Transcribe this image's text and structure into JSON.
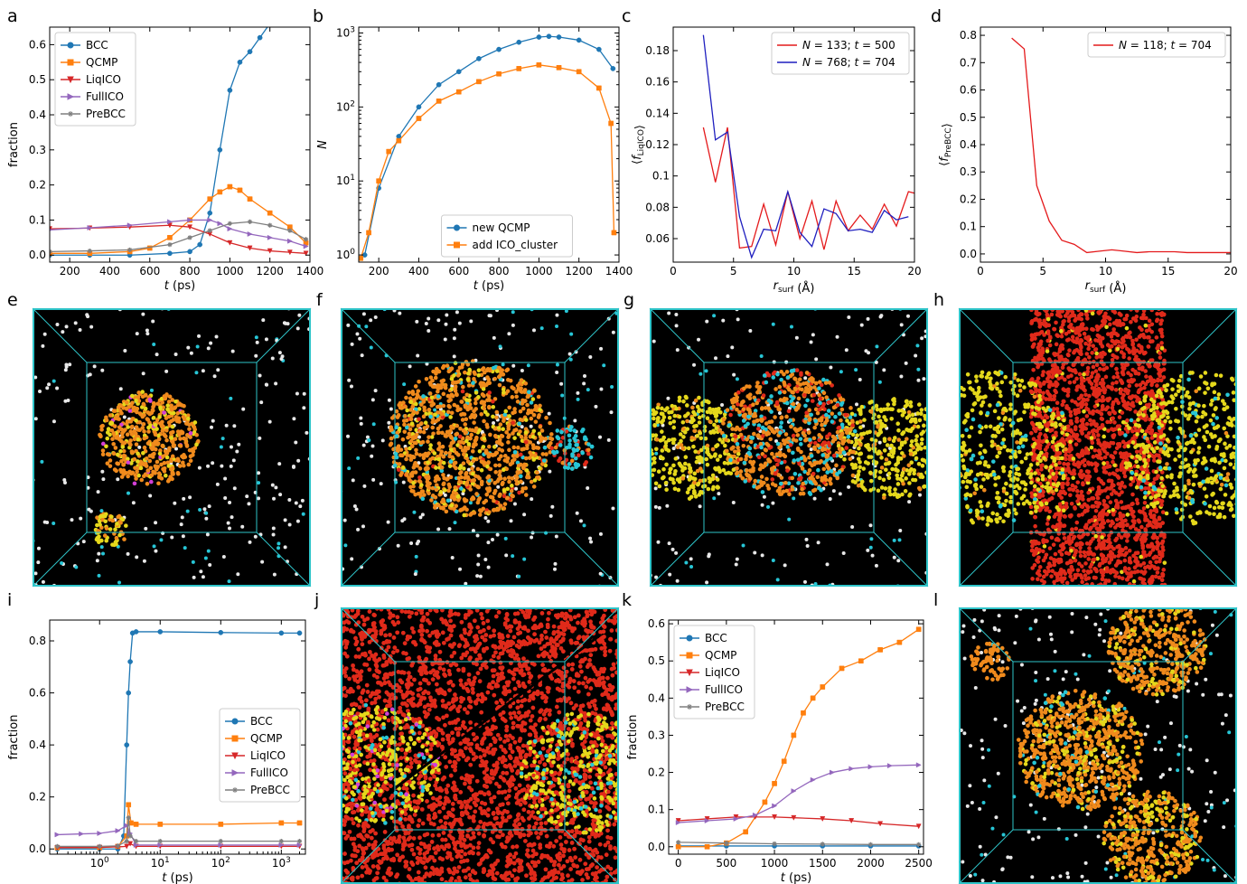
{
  "panel_letters": [
    "a",
    "b",
    "c",
    "d",
    "e",
    "f",
    "g",
    "h",
    "i",
    "j",
    "k",
    "l"
  ],
  "colors": {
    "BCC": "#1f77b4",
    "QCMP": "#ff7f0e",
    "LiqICO": "#d62728",
    "FullICO": "#9467bd",
    "PreBCC": "#7f7f7f",
    "red_line": "#e41a1c",
    "blue_line": "#1f1fbf",
    "box_edge": "#2ec4c9"
  },
  "chart_data": [
    {
      "id": "a",
      "type": "line",
      "xlabel": "t (ps)",
      "ylabel": "fraction",
      "xlim": [
        100,
        1400
      ],
      "ylim": [
        -0.02,
        0.65
      ],
      "xticks": [
        200,
        400,
        600,
        800,
        1000,
        1200,
        1400
      ],
      "yticks": [
        0.0,
        0.1,
        0.2,
        0.3,
        0.4,
        0.5,
        0.6
      ],
      "legend_position": "top-left",
      "series": [
        {
          "name": "BCC",
          "marker": "circle",
          "x": [
            100,
            300,
            500,
            700,
            800,
            850,
            900,
            950,
            1000,
            1050,
            1100,
            1150,
            1200
          ],
          "y": [
            0.0,
            0.0,
            0.0,
            0.005,
            0.01,
            0.03,
            0.12,
            0.3,
            0.47,
            0.55,
            0.58,
            0.62,
            0.66
          ]
        },
        {
          "name": "QCMP",
          "marker": "square",
          "x": [
            100,
            300,
            500,
            600,
            700,
            800,
            900,
            950,
            1000,
            1050,
            1100,
            1200,
            1300,
            1380
          ],
          "y": [
            0.005,
            0.005,
            0.01,
            0.02,
            0.05,
            0.1,
            0.16,
            0.18,
            0.195,
            0.185,
            0.16,
            0.12,
            0.08,
            0.035
          ]
        },
        {
          "name": "LiqICO",
          "marker": "triangle-down",
          "x": [
            100,
            300,
            500,
            700,
            800,
            900,
            1000,
            1100,
            1200,
            1300,
            1380
          ],
          "y": [
            0.075,
            0.077,
            0.08,
            0.085,
            0.08,
            0.06,
            0.035,
            0.02,
            0.012,
            0.008,
            0.005
          ]
        },
        {
          "name": "FullICO",
          "marker": "triangle-right",
          "x": [
            100,
            300,
            500,
            700,
            800,
            900,
            950,
            1000,
            1100,
            1200,
            1300,
            1380
          ],
          "y": [
            0.072,
            0.078,
            0.085,
            0.095,
            0.1,
            0.1,
            0.09,
            0.075,
            0.06,
            0.05,
            0.04,
            0.025
          ]
        },
        {
          "name": "PreBCC",
          "marker": "star",
          "x": [
            100,
            300,
            500,
            700,
            800,
            900,
            1000,
            1100,
            1200,
            1300,
            1380
          ],
          "y": [
            0.01,
            0.012,
            0.015,
            0.03,
            0.05,
            0.07,
            0.09,
            0.095,
            0.085,
            0.07,
            0.045
          ]
        }
      ]
    },
    {
      "id": "b",
      "type": "line",
      "xlabel": "t (ps)",
      "ylabel": "N",
      "yscale": "log",
      "xlim": [
        100,
        1400
      ],
      "ylim": [
        0.8,
        1200
      ],
      "xticks": [
        200,
        400,
        600,
        800,
        1000,
        1200,
        1400
      ],
      "yticks": [
        1,
        10,
        100,
        1000
      ],
      "ytick_labels": [
        "10^0",
        "10^1",
        "10^2",
        "10^3"
      ],
      "legend_position": "bottom-center",
      "series": [
        {
          "name": "new QCMP",
          "marker": "circle",
          "x": [
            130,
            200,
            300,
            400,
            500,
            600,
            700,
            800,
            900,
            1000,
            1050,
            1100,
            1200,
            1300,
            1370
          ],
          "y": [
            1,
            8,
            40,
            100,
            200,
            300,
            450,
            600,
            750,
            880,
            900,
            880,
            800,
            600,
            330
          ]
        },
        {
          "name": "add ICO_cluster",
          "marker": "square",
          "x": [
            110,
            150,
            200,
            250,
            300,
            400,
            500,
            600,
            700,
            800,
            900,
            1000,
            1100,
            1200,
            1300,
            1360,
            1375
          ],
          "y": [
            0.9,
            2,
            10,
            25,
            35,
            70,
            120,
            160,
            220,
            280,
            330,
            370,
            340,
            300,
            180,
            60,
            2
          ]
        }
      ]
    },
    {
      "id": "c",
      "type": "line",
      "xlabel": "r_surf (Å)",
      "ylabel": "⟨f_LiqICO⟩",
      "xlim": [
        0,
        20
      ],
      "ylim": [
        0.045,
        0.195
      ],
      "xticks": [
        0,
        5,
        10,
        15,
        20
      ],
      "yticks": [
        0.06,
        0.08,
        0.1,
        0.12,
        0.14,
        0.16,
        0.18
      ],
      "legend_position": "top-right",
      "series": [
        {
          "name": "N = 133; t = 500",
          "x": [
            2.5,
            3.5,
            4.5,
            5.5,
            6.5,
            7.5,
            8.5,
            9.5,
            10.5,
            11.5,
            12.5,
            13.5,
            14.5,
            15.5,
            16.5,
            17.5,
            18.5,
            19.5,
            20
          ],
          "y": [
            0.131,
            0.096,
            0.131,
            0.054,
            0.055,
            0.082,
            0.056,
            0.09,
            0.06,
            0.084,
            0.053,
            0.084,
            0.065,
            0.075,
            0.066,
            0.082,
            0.068,
            0.09,
            0.089
          ]
        },
        {
          "name": "N = 768; t = 704",
          "x": [
            2.5,
            3.5,
            4.5,
            5.5,
            6.5,
            7.5,
            8.5,
            9.5,
            10.5,
            11.5,
            12.5,
            13.5,
            14.5,
            15.5,
            16.5,
            17.5,
            18.5,
            19.5
          ],
          "y": [
            0.19,
            0.123,
            0.128,
            0.074,
            0.048,
            0.066,
            0.065,
            0.09,
            0.064,
            0.055,
            0.079,
            0.076,
            0.065,
            0.066,
            0.064,
            0.078,
            0.072,
            0.074
          ]
        }
      ]
    },
    {
      "id": "d",
      "type": "line",
      "xlabel": "r_surf (Å)",
      "ylabel": "⟨f_PreBCC⟩",
      "xlim": [
        0,
        20
      ],
      "ylim": [
        -0.03,
        0.83
      ],
      "xticks": [
        0,
        5,
        10,
        15,
        20
      ],
      "yticks": [
        0.0,
        0.1,
        0.2,
        0.3,
        0.4,
        0.5,
        0.6,
        0.7,
        0.8
      ],
      "legend_position": "top-right",
      "series": [
        {
          "name": "N = 118; t = 704",
          "x": [
            2.5,
            3.5,
            4.5,
            5.5,
            6.5,
            7.5,
            8.5,
            9.5,
            10.5,
            11.5,
            12.5,
            13.5,
            14.5,
            15.5,
            16.5,
            17.5,
            18.5,
            19.5,
            20
          ],
          "y": [
            0.79,
            0.75,
            0.25,
            0.12,
            0.05,
            0.035,
            0.005,
            0.01,
            0.015,
            0.01,
            0.005,
            0.008,
            0.008,
            0.008,
            0.005,
            0.005,
            0.005,
            0.005,
            0.005
          ]
        }
      ]
    },
    {
      "id": "i",
      "type": "line",
      "xlabel": "t (ps)",
      "ylabel": "fraction",
      "xscale": "log",
      "xlim": [
        0.15,
        2500
      ],
      "ylim": [
        -0.02,
        0.88
      ],
      "xticks": [
        1,
        10,
        100,
        1000
      ],
      "xtick_labels": [
        "10^0",
        "10^1",
        "10^2",
        "10^3"
      ],
      "yticks": [
        0.0,
        0.2,
        0.4,
        0.6,
        0.8
      ],
      "legend_position": "center-right",
      "series": [
        {
          "name": "BCC",
          "marker": "circle",
          "x": [
            0.2,
            1,
            2,
            2.5,
            2.8,
            3.0,
            3.2,
            3.5,
            4,
            10,
            100,
            1000,
            2000
          ],
          "y": [
            0.0,
            0.0,
            0.0,
            0.05,
            0.4,
            0.6,
            0.72,
            0.83,
            0.835,
            0.835,
            0.832,
            0.83,
            0.83
          ]
        },
        {
          "name": "QCMP",
          "marker": "square",
          "x": [
            0.2,
            1,
            2,
            2.8,
            3.0,
            3.3,
            4,
            10,
            100,
            1000,
            2000
          ],
          "y": [
            0.005,
            0.005,
            0.01,
            0.05,
            0.17,
            0.1,
            0.095,
            0.095,
            0.095,
            0.1,
            0.1
          ]
        },
        {
          "name": "LiqICO",
          "marker": "triangle-down",
          "x": [
            0.2,
            1,
            2,
            2.8,
            3.2,
            4,
            10,
            100,
            1000,
            2000
          ],
          "y": [
            0.005,
            0.006,
            0.008,
            0.01,
            0.02,
            0.01,
            0.01,
            0.01,
            0.01,
            0.01
          ]
        },
        {
          "name": "FullICO",
          "marker": "triangle-right",
          "x": [
            0.2,
            0.5,
            1,
            2,
            2.8,
            3.2,
            4,
            10,
            100,
            1000,
            2000
          ],
          "y": [
            0.055,
            0.058,
            0.06,
            0.07,
            0.09,
            0.06,
            0.015,
            0.015,
            0.015,
            0.015,
            0.015
          ]
        },
        {
          "name": "PreBCC",
          "marker": "star",
          "x": [
            0.2,
            1,
            2,
            2.8,
            3.0,
            3.2,
            4,
            10,
            100,
            1000,
            2000
          ],
          "y": [
            0.01,
            0.01,
            0.012,
            0.03,
            0.12,
            0.05,
            0.03,
            0.03,
            0.03,
            0.03,
            0.03
          ]
        }
      ]
    },
    {
      "id": "k",
      "type": "line",
      "xlabel": "t (ps)",
      "ylabel": "fraction",
      "xlim": [
        -100,
        2550
      ],
      "ylim": [
        -0.02,
        0.61
      ],
      "xticks": [
        0,
        500,
        1000,
        1500,
        2000,
        2500
      ],
      "yticks": [
        0.0,
        0.1,
        0.2,
        0.3,
        0.4,
        0.5,
        0.6
      ],
      "legend_position": "top-left",
      "series": [
        {
          "name": "BCC",
          "marker": "circle",
          "x": [
            0,
            500,
            1000,
            1500,
            2000,
            2500
          ],
          "y": [
            0.002,
            0.002,
            0.002,
            0.002,
            0.002,
            0.002
          ]
        },
        {
          "name": "QCMP",
          "marker": "square",
          "x": [
            0,
            300,
            500,
            700,
            900,
            1000,
            1100,
            1200,
            1300,
            1400,
            1500,
            1700,
            1900,
            2100,
            2300,
            2500
          ],
          "y": [
            0.0,
            0.0,
            0.01,
            0.04,
            0.12,
            0.17,
            0.23,
            0.3,
            0.36,
            0.4,
            0.43,
            0.48,
            0.5,
            0.53,
            0.55,
            0.585
          ]
        },
        {
          "name": "LiqICO",
          "marker": "triangle-down",
          "x": [
            0,
            300,
            600,
            800,
            1000,
            1200,
            1500,
            1800,
            2100,
            2500
          ],
          "y": [
            0.07,
            0.075,
            0.08,
            0.08,
            0.08,
            0.078,
            0.075,
            0.07,
            0.062,
            0.055
          ]
        },
        {
          "name": "FullICO",
          "marker": "triangle-right",
          "x": [
            0,
            300,
            600,
            800,
            1000,
            1200,
            1400,
            1600,
            1800,
            2000,
            2200,
            2500
          ],
          "y": [
            0.065,
            0.07,
            0.075,
            0.085,
            0.11,
            0.15,
            0.18,
            0.2,
            0.21,
            0.215,
            0.218,
            0.22
          ]
        },
        {
          "name": "PreBCC",
          "marker": "star",
          "x": [
            0,
            500,
            1000,
            1500,
            2000,
            2500
          ],
          "y": [
            0.012,
            0.01,
            0.008,
            0.007,
            0.006,
            0.006
          ]
        }
      ]
    }
  ]
}
